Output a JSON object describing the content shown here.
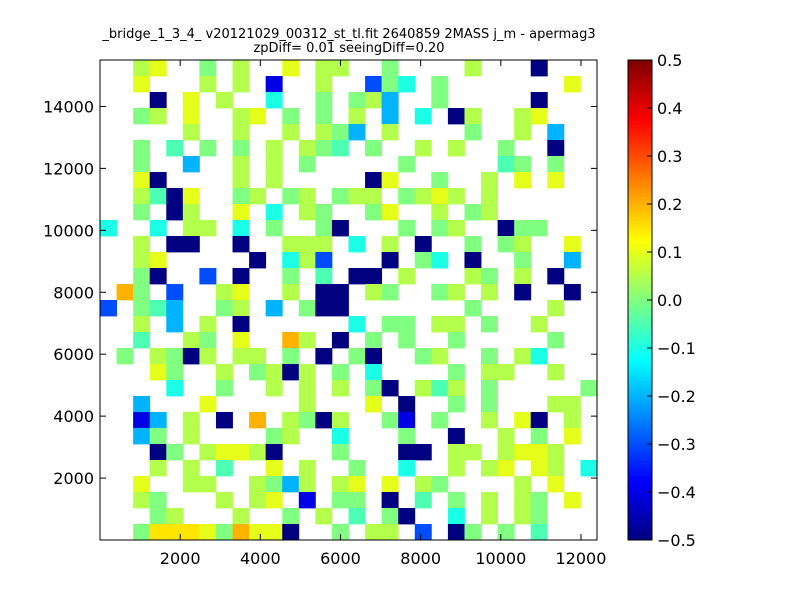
{
  "chart_data": {
    "type": "heatmap",
    "title": "_bridge_1_3_4_ v20121029_00312_st_tl.fit 2640859 2MASS j_m - apermag3",
    "subtitle": "zpDiff= 0.01 seeingDiff=0.20",
    "xlabel": "",
    "ylabel": "",
    "xlim": [
      0,
      12400
    ],
    "ylim": [
      0,
      15500
    ],
    "x_ticks": [
      2000,
      4000,
      6000,
      8000,
      10000,
      12000
    ],
    "y_ticks": [
      2000,
      4000,
      6000,
      8000,
      10000,
      12000,
      14000
    ],
    "x_tick_labels": [
      "2000",
      "4000",
      "6000",
      "8000",
      "10000",
      "12000"
    ],
    "y_tick_labels": [
      "2000",
      "4000",
      "6000",
      "8000",
      "10000",
      "12000",
      "14000"
    ],
    "colorbar": {
      "colormap": "jet",
      "vmin": -0.5,
      "vmax": 0.5,
      "ticks": [
        -0.5,
        -0.4,
        -0.3,
        -0.2,
        -0.1,
        0.0,
        0.1,
        0.2,
        0.3,
        0.4,
        0.5
      ],
      "tick_labels": [
        "−0.5",
        "−0.4",
        "−0.3",
        "−0.2",
        "−0.1",
        "0.0",
        "0.1",
        "0.2",
        "0.3",
        "0.4",
        "0.5"
      ]
    },
    "grid": false,
    "ncols": 30,
    "nrows": 30,
    "cells_note": "row 0 = top (y≈15500), col 0 = left (x≈0); '.' = empty; letters: A=-0.5 B=-0.4 C=-0.3 D=-0.2 E=-0.1 F=-0.05 G=0.0 H=0.05 I=0.1 J=0.15 K=0.2",
    "cells": [
      "..HI..G.H..I.HH..G....H...A...",
      "..I...H.H.B..H..CGE.G.......I.",
      "...A.I.H..E..G.GHD..G.....A...",
      "..GH.I..HI.G.G.H.D.E.AH..HI...",
      ".....H..H..H.HGD.H....G..H.D..",
      "..G.F.G.G.H.HGF.G..H.H..G..A..",
      "..G..D..H.H.G.....G.....FG.G..",
      "..IA....H.H.....AI..G..H.I.I..",
      "..HFAI..GH.GH.GHH.GHIH.H......",
      "..G.AH..I.E.HG..GI..H.GH.....",
      "E..E.HH.E.G..GA...G.GH..AGG...",
      "..H.AA..A..HHH.E.H.A..G.GH..I.",
      "..HI.....A.EHC...A.GE.A..G..D.",
      "..GA..C.A..G.F.AA.H...HG.H.A..",
      ".KG.C..HI..H.AA.HG..GH.H.A..A.",
      "C.GFD..GH.D.GAA.......G....H..",
      "..H.D.H.A......E.GG.HH.G..H...",
      "..F..HG.I..KH.A.G.G..G.....G..",
      ".G.HGAH.HH.G.A.GA..GH..G.HE...",
      "...IG..H.GHAH.G.E....G.HH..H..",
      "....E..G..H.H.H.GA.HFH.G.....G",
      "..D...I.....H...I.A..G.G...HH.",
      "..BD.H.A.K.HGAH..GB.G..H.IA.H.",
      "..DG.H....GH..E...G..A..H.G.I.",
      "...AG.HIIHA...G...AA.HH.HIIH..",
      "...H.H.F..I.H..G..E..H.HI.IH.E",
      "..I..HH..HGDH.HI.I.HG....H.I..",
      "..HG...H.HI.B.GG.A.F.G.H.HG.I.",
      "...GH...H..G.H.F.GA..E.H.HG...",
      "..GJJJIGKIIA..G.HH.C.AG.G.F..."
    ]
  }
}
